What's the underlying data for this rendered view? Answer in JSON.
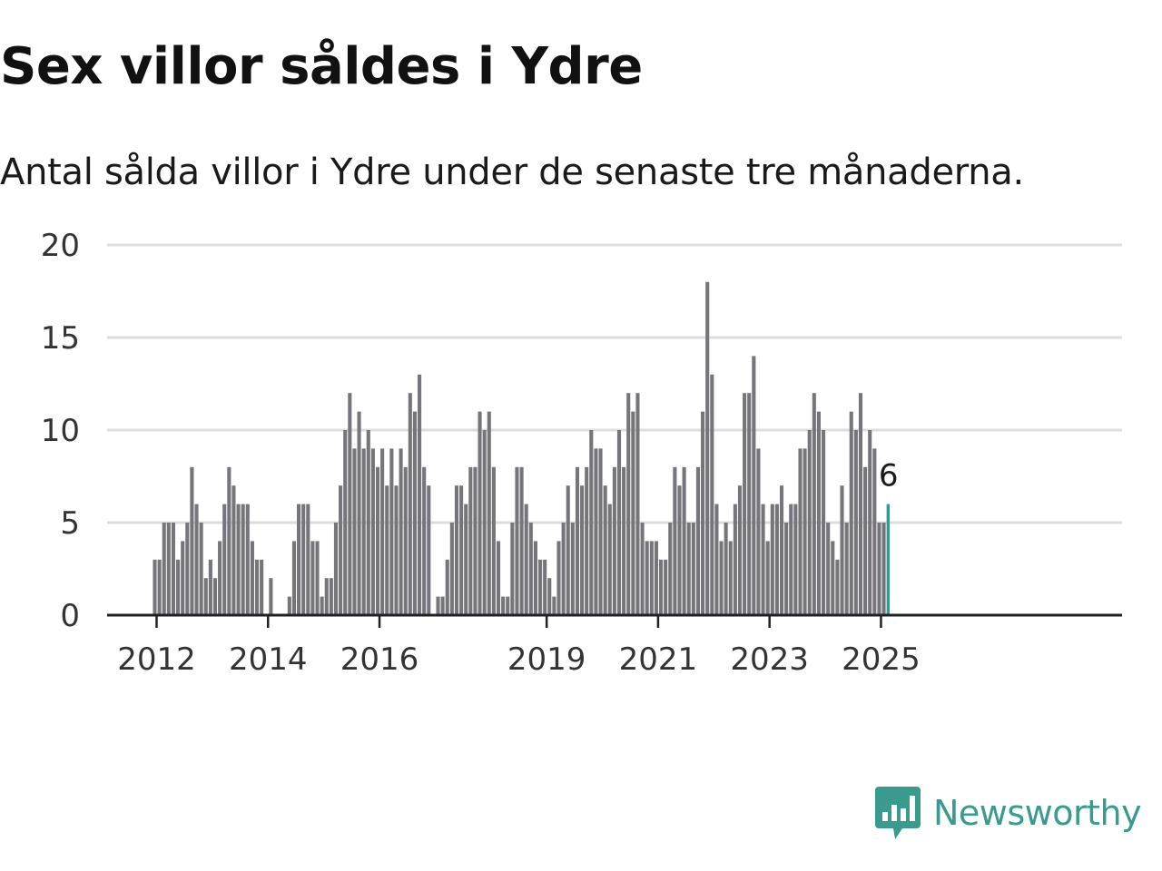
{
  "title": "Sex villor såldes i Ydre",
  "subtitle": "Antal sålda villor i Ydre under de senaste tre månaderna.",
  "brand": {
    "name": "Newsworthy",
    "color": "#3a9a8e",
    "icon": "newsworthy-logo-icon"
  },
  "colors": {
    "bar": "#76757b",
    "highlight": "#1fa396",
    "grid": "#dddddd",
    "axis": "#222222"
  },
  "chart_data": {
    "type": "bar",
    "start": "2012-01",
    "values": [
      3,
      3,
      5,
      5,
      5,
      3,
      4,
      5,
      8,
      6,
      5,
      2,
      3,
      2,
      4,
      6,
      8,
      7,
      6,
      6,
      6,
      4,
      3,
      3,
      0,
      2,
      0,
      0,
      0,
      1,
      4,
      6,
      6,
      6,
      4,
      4,
      1,
      2,
      2,
      5,
      7,
      10,
      12,
      9,
      11,
      9,
      10,
      9,
      8,
      9,
      7,
      9,
      7,
      9,
      8,
      12,
      11,
      13,
      8,
      7,
      0,
      1,
      1,
      3,
      5,
      7,
      7,
      6,
      8,
      8,
      11,
      10,
      11,
      8,
      4,
      1,
      1,
      5,
      8,
      8,
      6,
      5,
      4,
      3,
      3,
      2,
      1,
      4,
      5,
      7,
      5,
      8,
      7,
      8,
      10,
      9,
      9,
      7,
      6,
      8,
      10,
      8,
      12,
      11,
      12,
      5,
      4,
      4,
      4,
      3,
      3,
      5,
      8,
      7,
      8,
      5,
      5,
      8,
      11,
      18,
      13,
      6,
      4,
      5,
      4,
      6,
      7,
      12,
      12,
      14,
      9,
      6,
      4,
      6,
      6,
      7,
      5,
      6,
      6,
      9,
      9,
      10,
      12,
      11,
      10,
      5,
      4,
      3,
      7,
      5,
      11,
      10,
      12,
      8,
      10,
      9,
      5,
      5,
      6
    ],
    "highlight_last": true,
    "last_label": "6",
    "x_tick_labels": [
      "2012",
      "2014",
      "2016",
      "2019",
      "2021",
      "2023",
      "2025"
    ],
    "x_tick_months": [
      0,
      24,
      48,
      84,
      108,
      132,
      156
    ],
    "y_ticks": [
      "0",
      "5",
      "10",
      "15",
      "20"
    ],
    "ylim": [
      0,
      20
    ]
  }
}
